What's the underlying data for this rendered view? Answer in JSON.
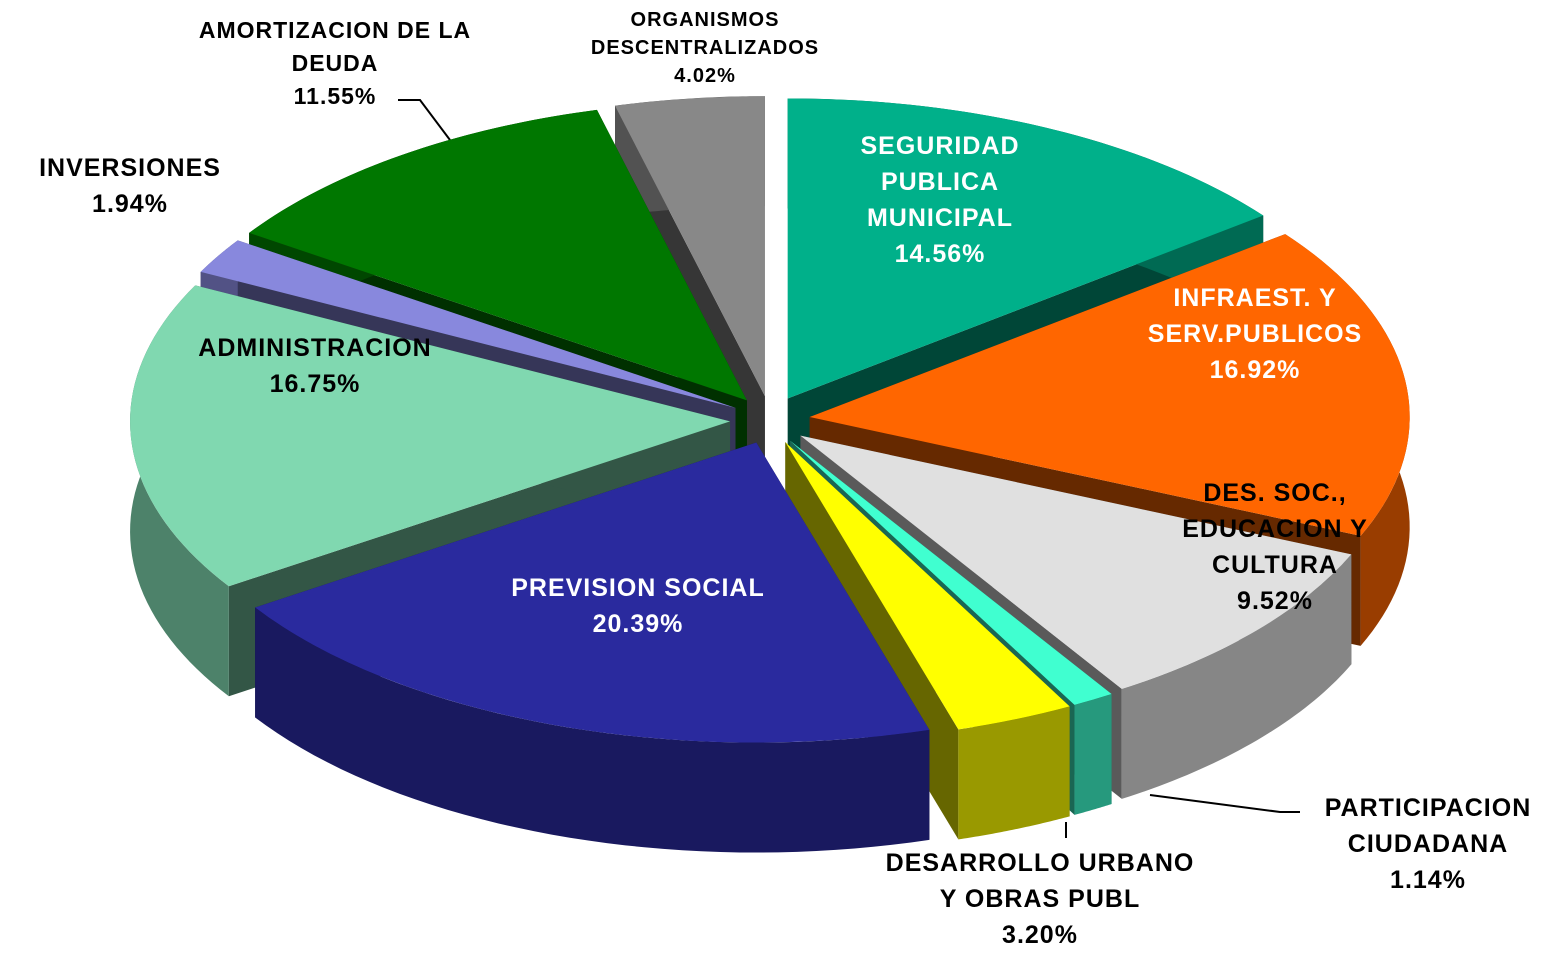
{
  "chart_data": {
    "type": "pie",
    "categories": [
      "SEGURIDAD PUBLICA MUNICIPAL",
      "INFRAEST. Y SERV.PUBLICOS",
      "DES. SOC., EDUCACION Y CULTURA",
      "PARTICIPACION CIUDADANA",
      "DESARROLLO URBANO Y OBRAS PUBL",
      "PREVISION SOCIAL",
      "ADMINISTRACION",
      "INVERSIONES",
      "AMORTIZACION DE LA DEUDA",
      "ORGANISMOS DESCENTRALIZADOS"
    ],
    "values": [
      14.56,
      16.92,
      9.52,
      1.14,
      3.2,
      20.39,
      16.75,
      1.94,
      11.55,
      4.02
    ],
    "value_labels": [
      "14.56%",
      "16.92%",
      "9.52%",
      "1.14%",
      "3.20%",
      "20.39%",
      "16.75%",
      "1.94%",
      "11.55%",
      "4.02%"
    ],
    "colors": [
      "#00b08a",
      "#ff6600",
      "#e0e0e0",
      "#40ffd0",
      "#ffff00",
      "#2a2a9e",
      "#80d8b0",
      "#8888dd",
      "#007700",
      "#888888"
    ]
  }
}
